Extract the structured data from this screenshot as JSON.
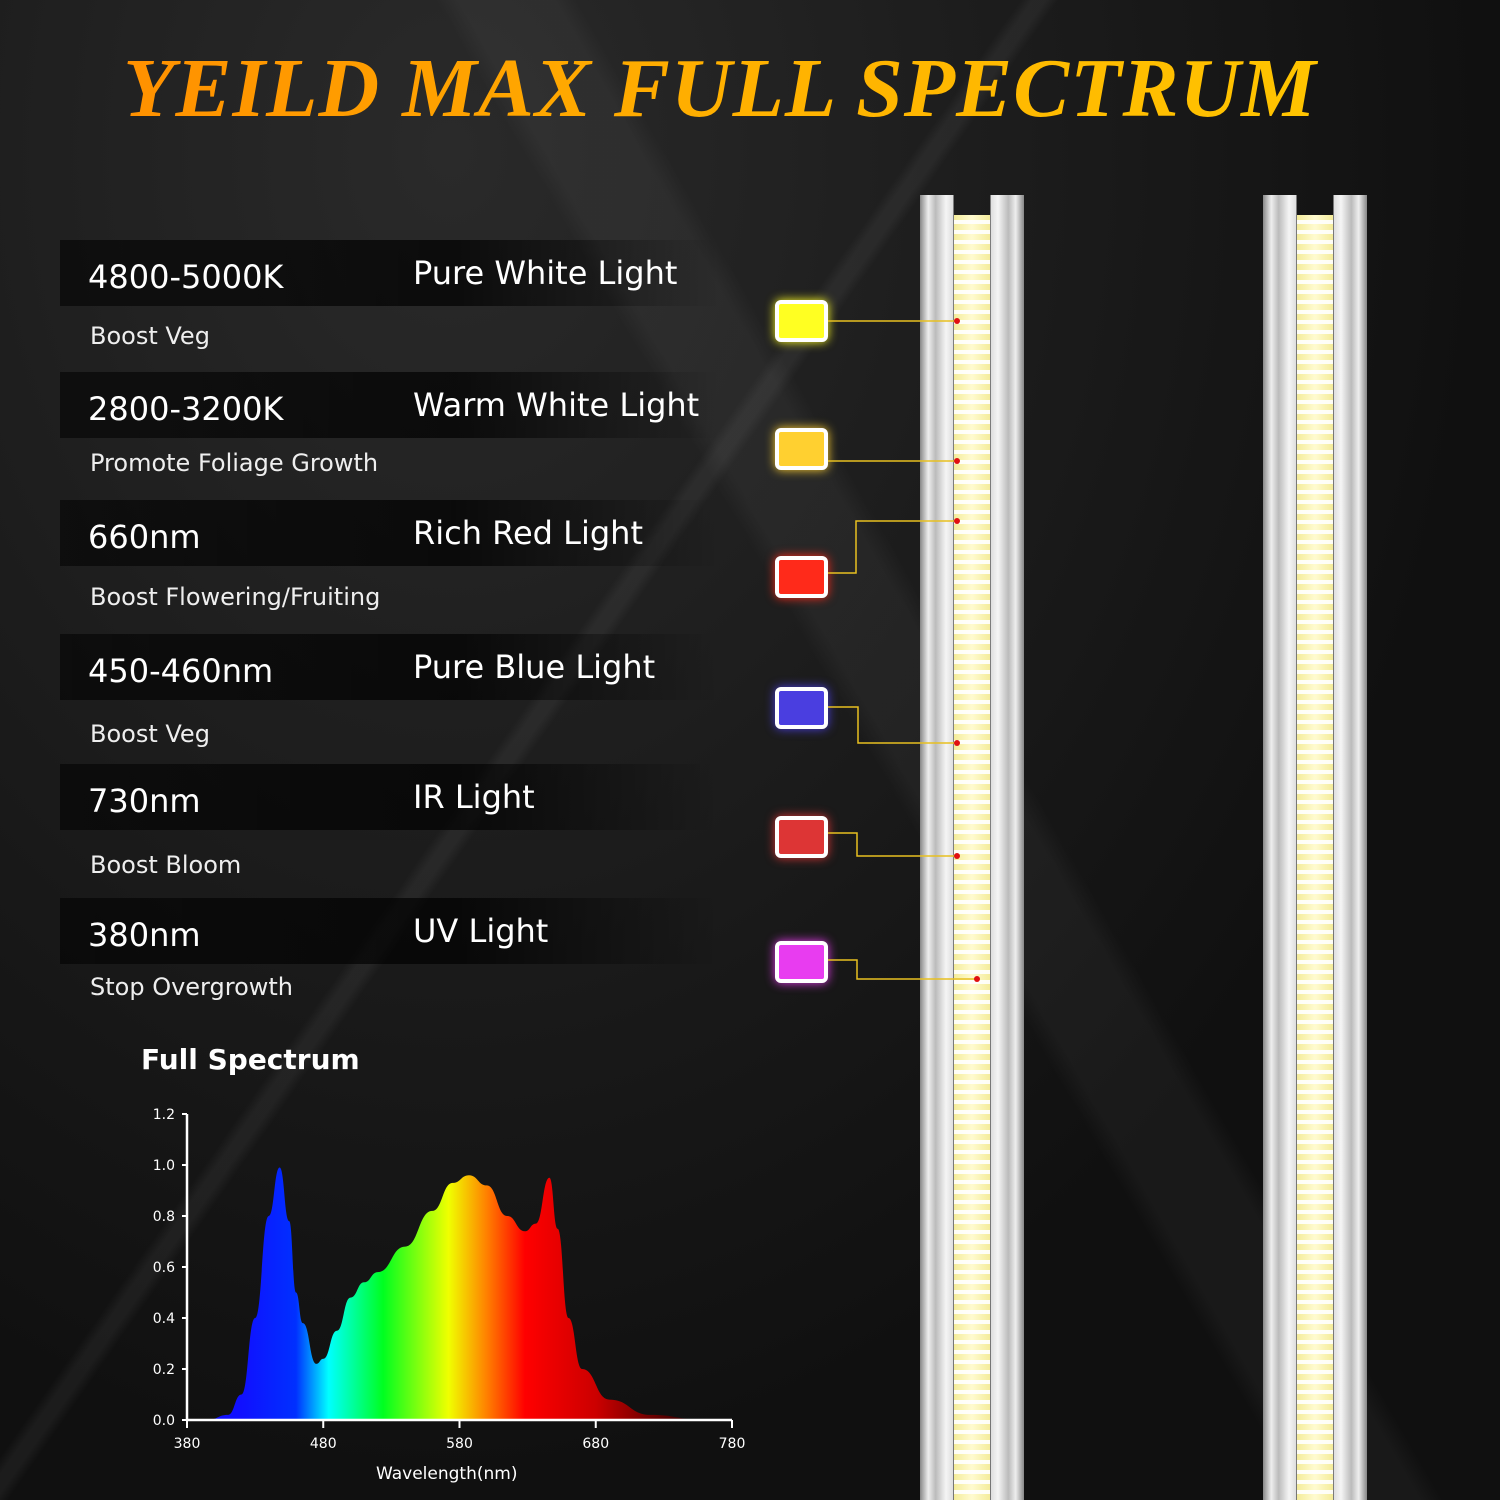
{
  "title": "YEILD MAX FULL SPECTRUM",
  "lights": [
    {
      "spec": "4800-5000K",
      "name": "Pure White Light",
      "effect": "Boost Veg",
      "color": "#ffff22"
    },
    {
      "spec": "2800-3200K",
      "name": "Warm White Light",
      "effect": "Promote Foliage Growth",
      "color": "#ffd030"
    },
    {
      "spec": "660nm",
      "name": "Rich Red Light",
      "effect": "Boost Flowering/Fruiting",
      "color": "#ff2a1a"
    },
    {
      "spec": "450-460nm",
      "name": "Pure Blue Light",
      "effect": "Boost Veg",
      "color": "#4a3ee0"
    },
    {
      "spec": "730nm",
      "name": "IR Light",
      "effect": "Boost Bloom",
      "color": "#dd3535"
    },
    {
      "spec": "380nm",
      "name": "UV Light",
      "effect": "Stop Overgrowth",
      "color": "#e83cf0"
    }
  ],
  "chart_data": {
    "type": "area",
    "title": "Full Spectrum",
    "xlabel": "Wavelength(nm)",
    "ylabel": "",
    "xlim": [
      380,
      780
    ],
    "ylim": [
      0,
      1.2
    ],
    "xticks": [
      "380",
      "480",
      "580",
      "680",
      "780"
    ],
    "yticks": [
      "0.0",
      "0.2",
      "0.4",
      "0.6",
      "0.8",
      "1.0",
      "1.2"
    ],
    "x": [
      395,
      410,
      420,
      430,
      440,
      448,
      455,
      460,
      465,
      475,
      480,
      490,
      500,
      510,
      520,
      540,
      560,
      575,
      587,
      600,
      615,
      628,
      636,
      646,
      652,
      660,
      670,
      690,
      720,
      760
    ],
    "y": [
      0,
      0.02,
      0.1,
      0.4,
      0.8,
      0.99,
      0.78,
      0.5,
      0.38,
      0.22,
      0.24,
      0.35,
      0.48,
      0.54,
      0.58,
      0.68,
      0.82,
      0.93,
      0.96,
      0.92,
      0.8,
      0.74,
      0.77,
      0.95,
      0.75,
      0.4,
      0.2,
      0.08,
      0.02,
      0
    ]
  }
}
